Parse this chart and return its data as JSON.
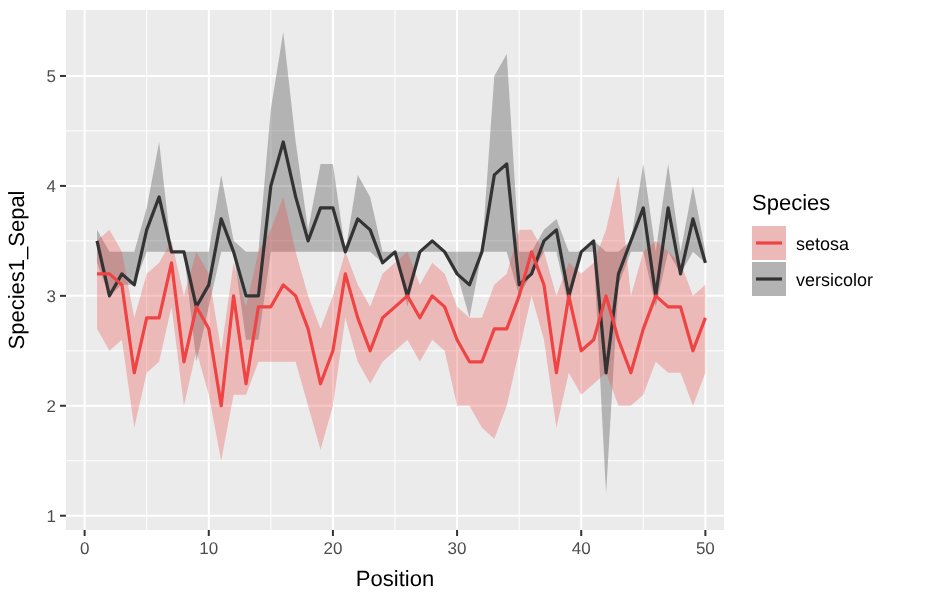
{
  "chart_data": {
    "type": "line",
    "xlabel": "Position",
    "ylabel": "Species1_Sepal",
    "legend_title": "Species",
    "legend": "right",
    "grid": true,
    "x": [
      1,
      2,
      3,
      4,
      5,
      6,
      7,
      8,
      9,
      10,
      11,
      12,
      13,
      14,
      15,
      16,
      17,
      18,
      19,
      20,
      21,
      22,
      23,
      24,
      25,
      26,
      27,
      28,
      29,
      30,
      31,
      32,
      33,
      34,
      35,
      36,
      37,
      38,
      39,
      40,
      41,
      42,
      43,
      44,
      45,
      46,
      47,
      48,
      49,
      50
    ],
    "xlim": [
      -1.5,
      51.5
    ],
    "xticks": [
      0,
      10,
      20,
      30,
      40,
      50
    ],
    "ylim": [
      0.87,
      5.6
    ],
    "yticks": [
      1,
      2,
      3,
      4,
      5
    ],
    "series": [
      {
        "name": "setosa",
        "color": "#ee4444",
        "values": [
          3.2,
          3.2,
          3.1,
          2.3,
          2.8,
          2.8,
          3.3,
          2.4,
          2.9,
          2.7,
          2.0,
          3.0,
          2.2,
          2.9,
          2.9,
          3.1,
          3.0,
          2.7,
          2.2,
          2.5,
          3.2,
          2.8,
          2.5,
          2.8,
          2.9,
          3.0,
          2.8,
          3.0,
          2.9,
          2.6,
          2.4,
          2.4,
          2.7,
          2.7,
          3.0,
          3.4,
          3.1,
          2.3,
          3.0,
          2.5,
          2.6,
          3.0,
          2.6,
          2.3,
          2.7,
          3.0,
          2.9,
          2.9,
          2.5,
          2.8
        ],
        "lower": [
          2.7,
          2.5,
          2.6,
          1.8,
          2.3,
          2.4,
          2.9,
          2.0,
          2.5,
          2.1,
          1.5,
          2.1,
          2.1,
          2.4,
          2.4,
          2.4,
          2.4,
          2.0,
          1.6,
          2.0,
          2.8,
          2.4,
          2.2,
          2.4,
          2.5,
          2.6,
          2.4,
          2.6,
          2.5,
          2.0,
          2.0,
          1.8,
          1.7,
          2.0,
          2.5,
          3.0,
          2.6,
          1.8,
          2.3,
          2.1,
          2.2,
          2.3,
          2.0,
          2.0,
          2.1,
          2.4,
          2.3,
          2.3,
          2.0,
          2.3
        ],
        "upper": [
          3.5,
          3.6,
          3.4,
          2.8,
          3.2,
          3.3,
          3.5,
          3.0,
          3.4,
          3.2,
          2.5,
          3.3,
          2.9,
          3.4,
          3.6,
          3.9,
          3.4,
          3.0,
          2.7,
          3.0,
          3.4,
          3.1,
          2.9,
          3.2,
          3.3,
          3.4,
          3.1,
          3.3,
          3.2,
          2.9,
          2.8,
          2.8,
          3.1,
          3.2,
          3.6,
          3.6,
          3.4,
          3.0,
          3.3,
          3.2,
          3.3,
          3.6,
          4.1,
          3.0,
          3.4,
          3.5,
          3.4,
          3.3,
          3.0,
          3.1
        ]
      },
      {
        "name": "versicolor",
        "color": "#333333",
        "values": [
          3.5,
          3.0,
          3.2,
          3.1,
          3.6,
          3.9,
          3.4,
          3.4,
          2.9,
          3.1,
          3.7,
          3.4,
          3.0,
          3.0,
          4.0,
          4.4,
          3.9,
          3.5,
          3.8,
          3.8,
          3.4,
          3.7,
          3.6,
          3.3,
          3.4,
          3.0,
          3.4,
          3.5,
          3.4,
          3.2,
          3.1,
          3.4,
          4.1,
          4.2,
          3.1,
          3.2,
          3.5,
          3.6,
          3.0,
          3.4,
          3.5,
          2.3,
          3.2,
          3.5,
          3.8,
          3.0,
          3.8,
          3.2,
          3.7,
          3.3
        ],
        "lower": [
          3.3,
          3.0,
          3.1,
          3.1,
          3.4,
          3.4,
          3.4,
          3.4,
          2.4,
          2.9,
          3.4,
          3.4,
          2.6,
          2.6,
          3.4,
          3.4,
          3.4,
          3.4,
          3.4,
          3.4,
          3.4,
          3.4,
          3.4,
          3.3,
          3.4,
          2.9,
          3.4,
          3.4,
          3.4,
          3.2,
          2.8,
          3.4,
          3.4,
          3.4,
          3.0,
          3.2,
          3.4,
          3.4,
          2.9,
          3.4,
          3.4,
          1.2,
          3.1,
          3.4,
          3.4,
          2.9,
          3.4,
          3.2,
          3.4,
          3.3
        ],
        "upper": [
          3.6,
          3.4,
          3.4,
          3.4,
          3.8,
          4.4,
          3.4,
          3.4,
          3.4,
          3.4,
          4.1,
          3.5,
          3.4,
          3.4,
          4.7,
          5.4,
          4.4,
          3.6,
          4.2,
          4.2,
          3.4,
          4.1,
          3.9,
          3.4,
          3.4,
          3.4,
          3.4,
          3.5,
          3.4,
          3.4,
          3.4,
          3.4,
          5.0,
          5.2,
          3.4,
          3.4,
          3.6,
          3.7,
          3.4,
          3.4,
          3.5,
          3.4,
          3.4,
          3.5,
          4.2,
          3.4,
          4.2,
          3.4,
          4.0,
          3.4
        ]
      }
    ]
  }
}
